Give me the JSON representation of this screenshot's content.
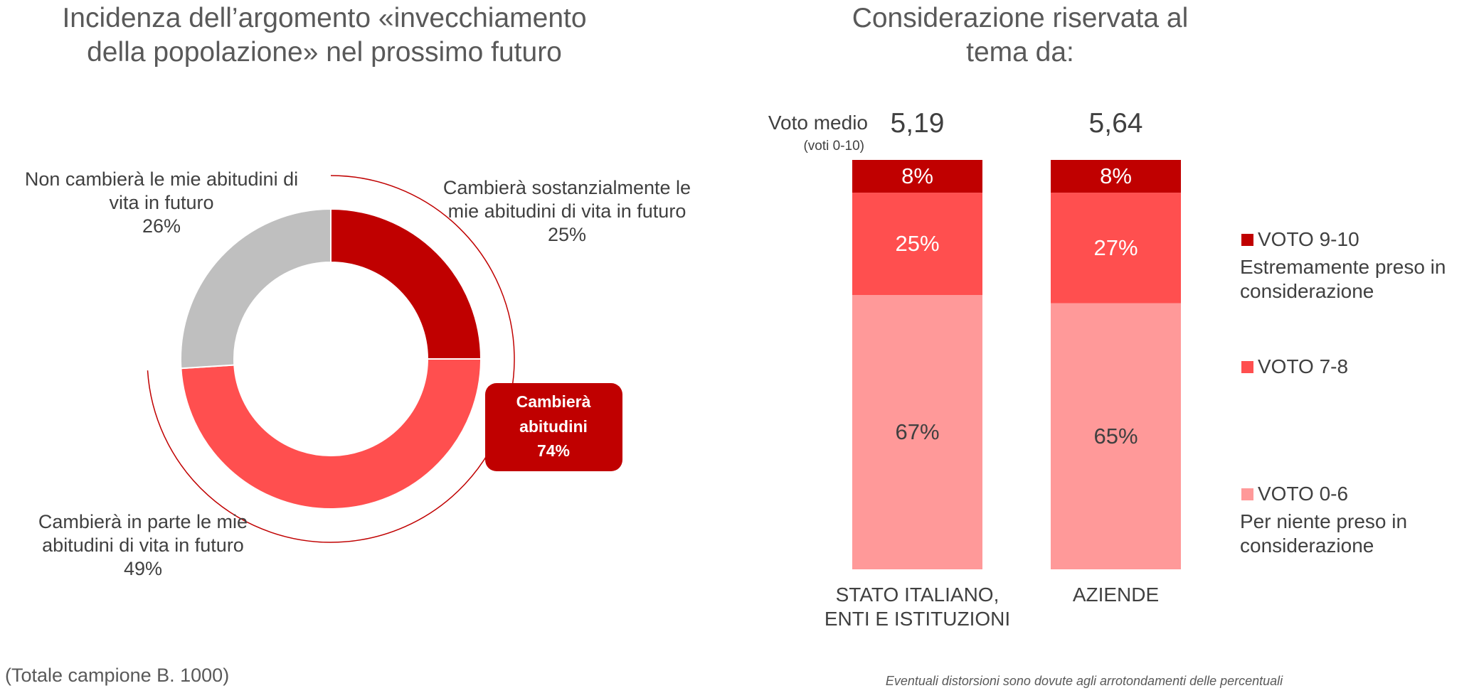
{
  "chart_data": [
    {
      "type": "donut",
      "title": "Incidenza dell’argomento «invecchiamento della popolazione» nel prossimo futuro",
      "categories": [
        "Cambierà sostanzialmente le mie abitudini di vita in futuro",
        "Cambierà in parte le mie abitudini di vita in futuro",
        "Non cambierà le mie abitudini di vita in futuro"
      ],
      "values": [
        25,
        49,
        26
      ],
      "value_labels": [
        "25%",
        "49%",
        "26%"
      ],
      "colors": [
        "#c00000",
        "#ff4f4f",
        "#bfbfbf"
      ],
      "annotation": {
        "text": "Cambierà abitudini",
        "value": 74,
        "label": "74%",
        "color": "#c00000"
      },
      "note": "(Totale campione B. 1000)"
    },
    {
      "type": "stacked_bar",
      "title": "Considerazione riservata al tema da:",
      "categories": [
        "STATO ITALIANO, ENTI E ISTITUZIONI",
        "AZIENDE"
      ],
      "ylim": [
        0,
        100
      ],
      "series": [
        {
          "name": "VOTO 9-10",
          "description": "Estremamente preso in considerazione",
          "color": "#c00000",
          "values": [
            8,
            8
          ],
          "value_labels": [
            "8%",
            "8%"
          ]
        },
        {
          "name": "VOTO 7-8",
          "color": "#ff4f4f",
          "values": [
            25,
            27
          ],
          "value_labels": [
            "25%",
            "27%"
          ]
        },
        {
          "name": "VOTO 0-6",
          "description": "Per niente preso in considerazione",
          "color": "#ff9999",
          "values": [
            67,
            65
          ],
          "value_labels": [
            "67%",
            "65%"
          ]
        }
      ],
      "mean": {
        "label": "Voto medio",
        "sublabel": "(voti 0-10)",
        "values": [
          5.19,
          5.64
        ],
        "value_labels": [
          "5,19",
          "5,64"
        ]
      },
      "note": "Eventuali distorsioni sono dovute agli arrotondamenti delle percentuali"
    }
  ]
}
